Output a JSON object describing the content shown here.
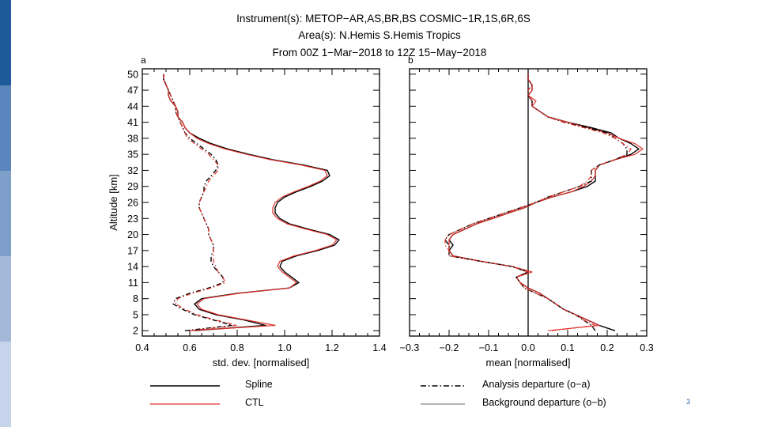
{
  "header": {
    "title_line1": "Instrument(s): METOP−AR,AS,BR,BS COSMIC−1R,1S,6R,6S",
    "title_line2": "Area(s): N.Hemis S.Hemis Tropics",
    "title_line3": "From 00Z  1−Mar−2018 to 12Z 15−May−2018"
  },
  "colors": {
    "sidebar": [
      "#1e5a9a",
      "#5b86bd",
      "#7f9fcb",
      "#a4b8da",
      "#c6d3ea"
    ],
    "spline": "#000000",
    "ctl": "#e0302a",
    "background_departure_legend": "#9a9a9a"
  },
  "legend": {
    "spline": "Spline",
    "ctl": "CTL",
    "analysis": "Analysis departure (o−a)",
    "background": "Background departure (o−b)"
  },
  "slide_number": "3",
  "chart_data": [
    {
      "type": "line",
      "panel": "a",
      "xlabel": "std. dev. [normalised]",
      "ylabel": "Altitude [km]",
      "xlim": [
        0.4,
        1.4
      ],
      "ylim": [
        1,
        51
      ],
      "xticks": [
        "0.4",
        "0.6",
        "0.8",
        "1.0",
        "1.2",
        "1.4"
      ],
      "xtick_values": [
        0.4,
        0.6,
        0.8,
        1.0,
        1.2,
        1.4
      ],
      "yticks": [
        "2",
        "5",
        "8",
        "11",
        "14",
        "17",
        "20",
        "23",
        "26",
        "29",
        "32",
        "35",
        "38",
        "41",
        "44",
        "47",
        "50"
      ],
      "ytick_values": [
        2,
        5,
        8,
        11,
        14,
        17,
        20,
        23,
        26,
        29,
        32,
        35,
        38,
        41,
        44,
        47,
        50
      ],
      "y": [
        2,
        3,
        4,
        5,
        6,
        7,
        8,
        9,
        10,
        11,
        12,
        13,
        14,
        15,
        16,
        17,
        18,
        19,
        20,
        21,
        22,
        23,
        24,
        25,
        26,
        27,
        28,
        29,
        30,
        31,
        32,
        33,
        34,
        35,
        36,
        37,
        38,
        39,
        40,
        41,
        42,
        43,
        44,
        45,
        46,
        47,
        48,
        49,
        50
      ],
      "series": [
        {
          "name": "Spline o-b",
          "style": "solid",
          "color": "#000000",
          "values": [
            0.62,
            0.92,
            0.83,
            0.71,
            0.64,
            0.62,
            0.65,
            0.8,
            1.02,
            1.06,
            1.03,
            1.0,
            0.98,
            0.99,
            1.05,
            1.14,
            1.21,
            1.23,
            1.19,
            1.1,
            1.02,
            0.98,
            0.96,
            0.96,
            0.97,
            1.0,
            1.05,
            1.11,
            1.16,
            1.19,
            1.18,
            1.08,
            0.95,
            0.85,
            0.76,
            0.69,
            0.64,
            0.6,
            0.58,
            0.57,
            0.55,
            0.55,
            0.54,
            0.52,
            0.51,
            0.51,
            0.5,
            0.49,
            0.49
          ]
        },
        {
          "name": "CTL o-b",
          "style": "solid",
          "color": "#e0302a",
          "values": [
            0.6,
            0.96,
            0.84,
            0.72,
            0.65,
            0.63,
            0.66,
            0.81,
            1.02,
            1.05,
            1.02,
            0.99,
            0.97,
            0.98,
            1.04,
            1.13,
            1.2,
            1.22,
            1.18,
            1.09,
            1.01,
            0.97,
            0.95,
            0.95,
            0.96,
            0.99,
            1.04,
            1.1,
            1.15,
            1.18,
            1.17,
            1.07,
            0.94,
            0.84,
            0.75,
            0.68,
            0.63,
            0.6,
            0.58,
            0.57,
            0.55,
            0.55,
            0.54,
            0.52,
            0.51,
            0.51,
            0.5,
            0.49,
            0.49
          ]
        },
        {
          "name": "Spline o-a",
          "style": "dashdot",
          "color": "#000000",
          "values": [
            0.58,
            0.78,
            0.7,
            0.62,
            0.57,
            0.53,
            0.54,
            0.6,
            0.68,
            0.74,
            0.74,
            0.72,
            0.7,
            0.69,
            0.69,
            0.7,
            0.7,
            0.69,
            0.68,
            0.68,
            0.67,
            0.66,
            0.65,
            0.64,
            0.64,
            0.65,
            0.66,
            0.66,
            0.67,
            0.69,
            0.71,
            0.72,
            0.71,
            0.69,
            0.66,
            0.63,
            0.6,
            0.58,
            0.57,
            0.56,
            0.55,
            0.54,
            0.54,
            0.53,
            0.52,
            0.51,
            0.5,
            0.49,
            0.49
          ]
        },
        {
          "name": "CTL o-a",
          "style": "dashdot",
          "color": "#e0302a",
          "values": [
            0.6,
            0.8,
            0.71,
            0.63,
            0.58,
            0.54,
            0.55,
            0.61,
            0.69,
            0.75,
            0.74,
            0.72,
            0.71,
            0.7,
            0.7,
            0.7,
            0.7,
            0.69,
            0.68,
            0.68,
            0.67,
            0.66,
            0.65,
            0.64,
            0.64,
            0.65,
            0.66,
            0.67,
            0.68,
            0.7,
            0.72,
            0.72,
            0.7,
            0.68,
            0.65,
            0.62,
            0.59,
            0.58,
            0.57,
            0.56,
            0.55,
            0.54,
            0.54,
            0.53,
            0.52,
            0.51,
            0.5,
            0.49,
            0.49
          ]
        }
      ]
    },
    {
      "type": "line",
      "panel": "b",
      "xlabel": "mean [normalised]",
      "xlim": [
        -0.3,
        0.3
      ],
      "ylim": [
        1,
        51
      ],
      "xticks": [
        "−0.3",
        "−0.2",
        "−0.1",
        "0.0",
        "0.1",
        "0.2",
        "0.3"
      ],
      "xtick_values": [
        -0.3,
        -0.2,
        -0.1,
        0.0,
        0.1,
        0.2,
        0.3
      ],
      "zero_line": 0.0,
      "y": [
        2,
        3,
        4,
        5,
        6,
        7,
        8,
        9,
        10,
        11,
        12,
        13,
        14,
        15,
        16,
        17,
        18,
        19,
        20,
        21,
        22,
        23,
        24,
        25,
        26,
        27,
        28,
        29,
        30,
        31,
        32,
        33,
        34,
        35,
        36,
        37,
        38,
        39,
        40,
        41,
        42,
        43,
        44,
        45,
        46,
        47,
        48,
        49,
        50
      ],
      "series": [
        {
          "name": "Spline o-b",
          "style": "solid",
          "color": "#000000",
          "values": [
            0.22,
            0.18,
            0.15,
            0.12,
            0.09,
            0.07,
            0.05,
            0.03,
            0.0,
            -0.02,
            -0.03,
            0.0,
            -0.04,
            -0.12,
            -0.19,
            -0.2,
            -0.19,
            -0.2,
            -0.19,
            -0.16,
            -0.13,
            -0.09,
            -0.05,
            -0.01,
            0.02,
            0.06,
            0.11,
            0.15,
            0.17,
            0.17,
            0.17,
            0.18,
            0.22,
            0.26,
            0.28,
            0.26,
            0.23,
            0.21,
            0.16,
            0.1,
            0.05,
            0.03,
            0.01,
            0.01,
            0.0,
            0.01,
            0.01,
            0.0,
            0.0
          ]
        },
        {
          "name": "CTL o-b",
          "style": "solid",
          "color": "#e0302a",
          "values": [
            0.05,
            0.18,
            0.15,
            0.12,
            0.09,
            0.07,
            0.05,
            0.03,
            0.0,
            -0.02,
            -0.03,
            0.01,
            -0.04,
            -0.12,
            -0.19,
            -0.2,
            -0.2,
            -0.2,
            -0.19,
            -0.16,
            -0.13,
            -0.09,
            -0.05,
            -0.01,
            0.02,
            0.06,
            0.11,
            0.14,
            0.16,
            0.17,
            0.17,
            0.18,
            0.22,
            0.27,
            0.29,
            0.27,
            0.23,
            0.2,
            0.15,
            0.1,
            0.05,
            0.03,
            0.01,
            0.02,
            0.0,
            0.01,
            0.01,
            0.0,
            0.0
          ]
        },
        {
          "name": "Spline o-a",
          "style": "dashdot",
          "color": "#000000",
          "values": [
            0.17,
            0.16,
            0.14,
            0.12,
            0.09,
            0.07,
            0.05,
            0.02,
            -0.01,
            -0.02,
            -0.03,
            0.0,
            -0.04,
            -0.12,
            -0.2,
            -0.2,
            -0.2,
            -0.21,
            -0.2,
            -0.17,
            -0.14,
            -0.1,
            -0.06,
            -0.02,
            0.02,
            0.05,
            0.09,
            0.13,
            0.16,
            0.16,
            0.16,
            0.18,
            0.22,
            0.25,
            0.25,
            0.24,
            0.22,
            0.2,
            0.15,
            0.09,
            0.05,
            0.03,
            0.01,
            0.01,
            0.0,
            0.0,
            0.01,
            0.0,
            0.0
          ]
        },
        {
          "name": "CTL o-a",
          "style": "dashdot",
          "color": "#e0302a",
          "values": [
            0.06,
            0.17,
            0.14,
            0.12,
            0.09,
            0.07,
            0.05,
            0.02,
            -0.01,
            -0.02,
            -0.03,
            0.0,
            -0.04,
            -0.12,
            -0.2,
            -0.2,
            -0.21,
            -0.21,
            -0.2,
            -0.17,
            -0.14,
            -0.1,
            -0.06,
            -0.02,
            0.02,
            0.05,
            0.09,
            0.13,
            0.15,
            0.16,
            0.16,
            0.18,
            0.22,
            0.25,
            0.26,
            0.24,
            0.22,
            0.19,
            0.14,
            0.09,
            0.05,
            0.03,
            0.01,
            0.01,
            0.0,
            0.0,
            0.01,
            0.0,
            0.0
          ]
        }
      ]
    }
  ]
}
